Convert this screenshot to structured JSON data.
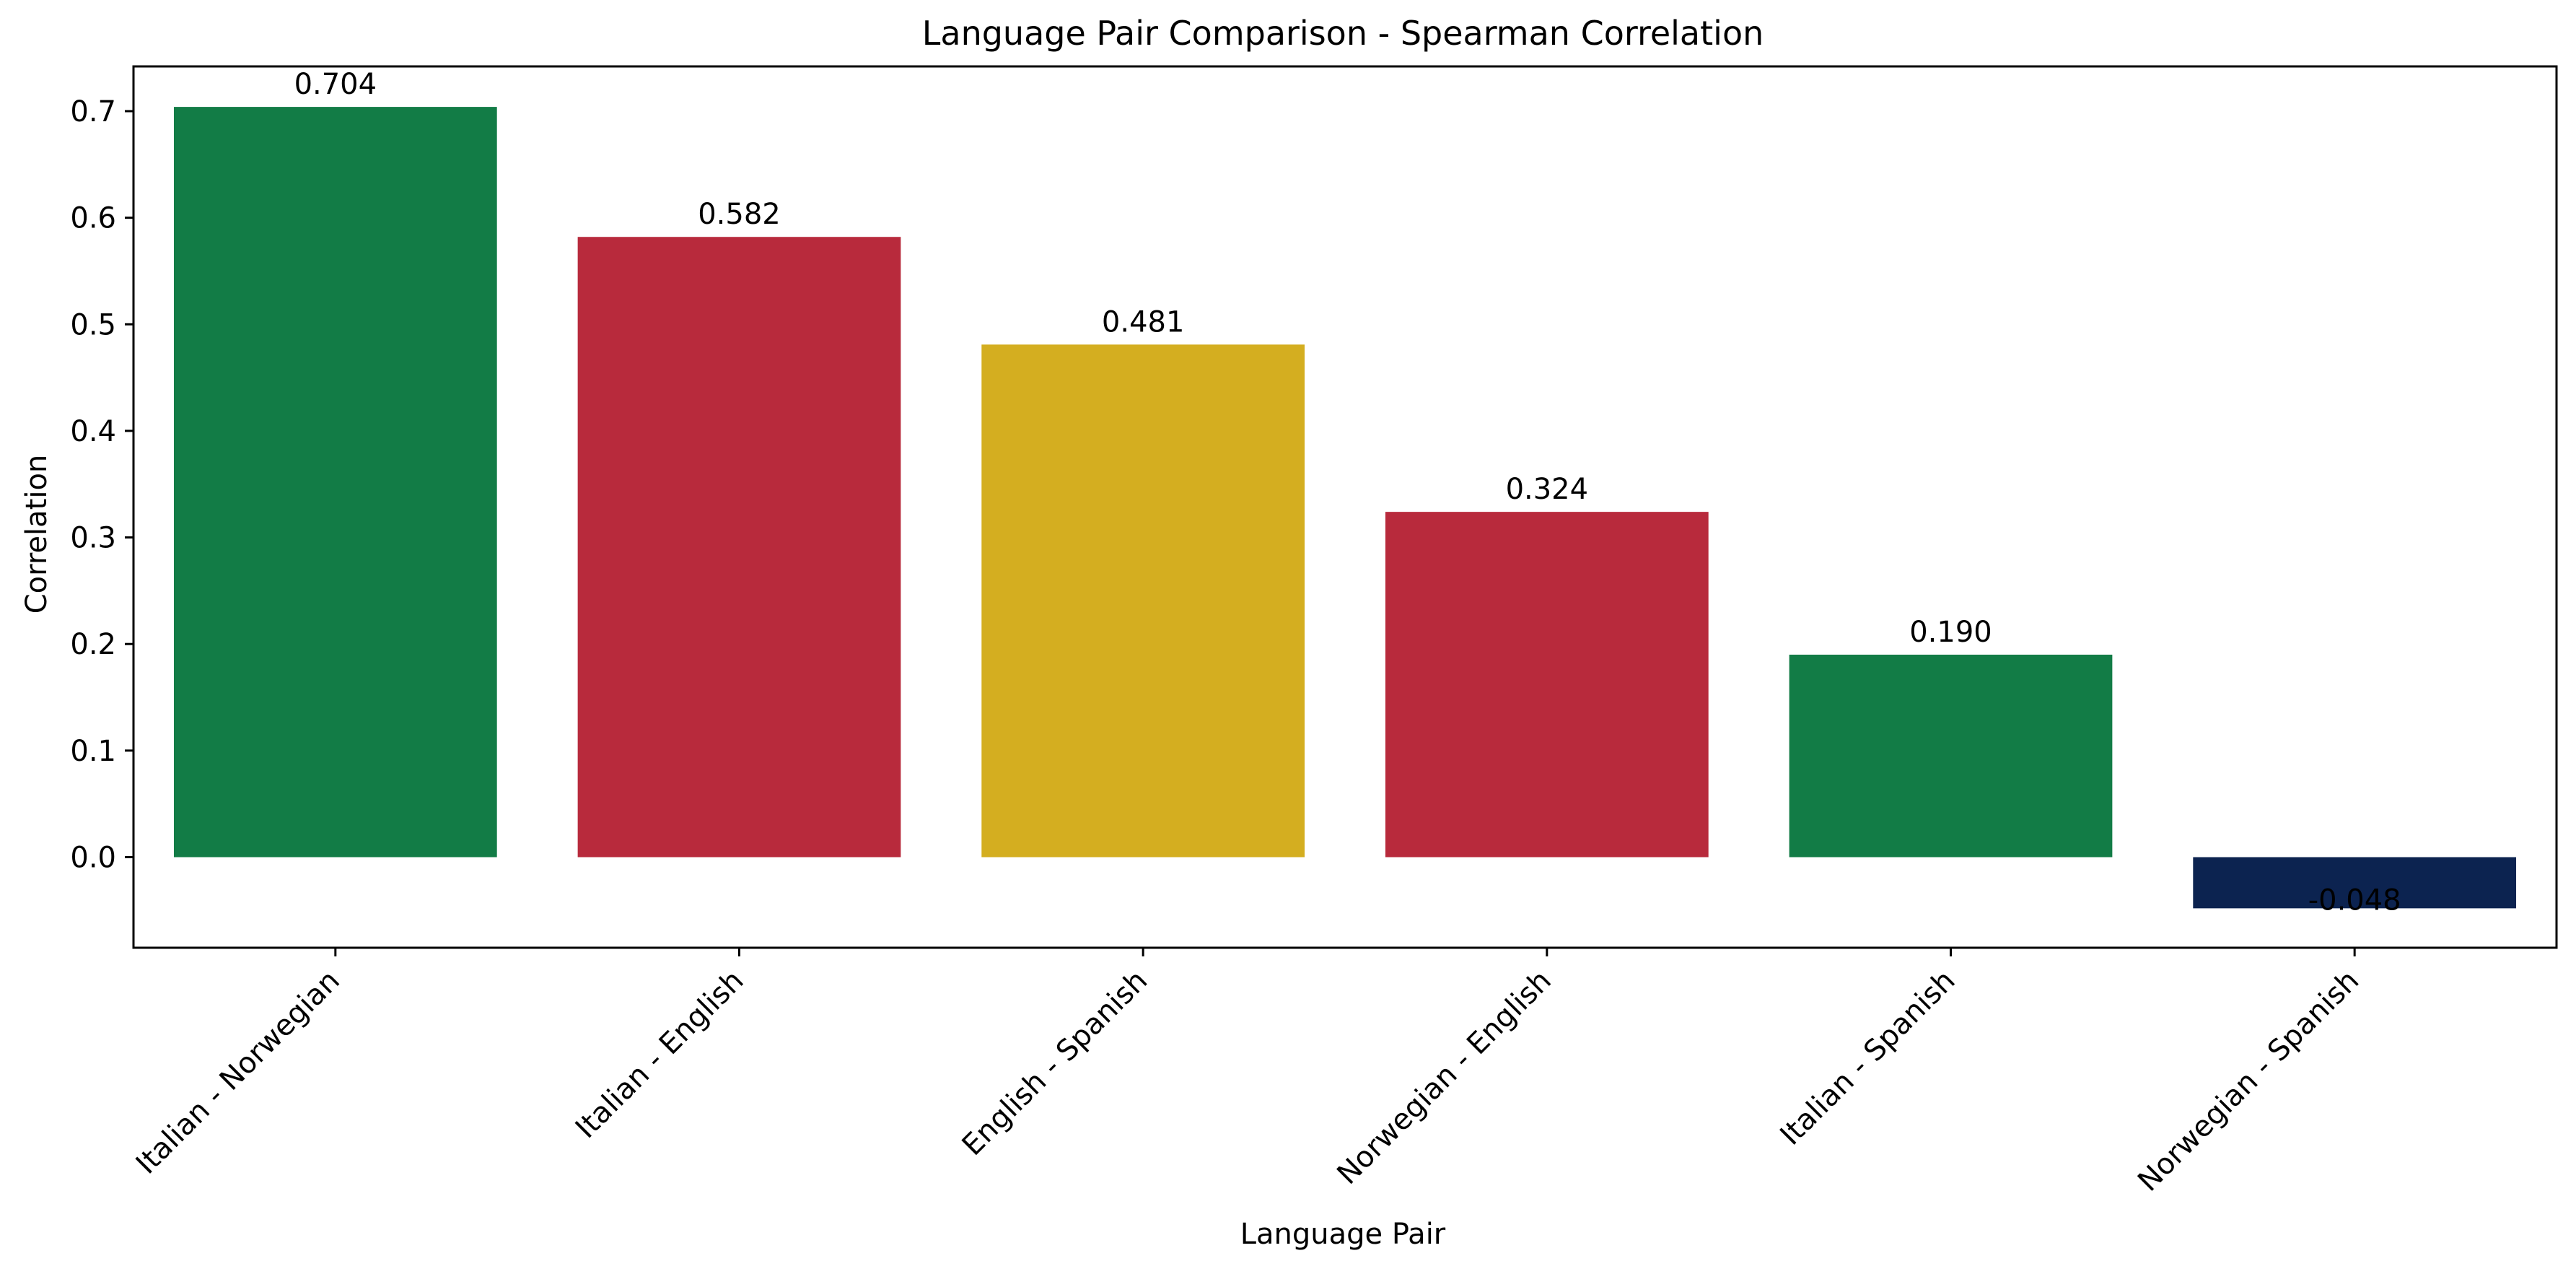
{
  "chart_data": {
    "type": "bar",
    "title": "Language Pair Comparison - Spearman Correlation",
    "xlabel": "Language Pair",
    "ylabel": "Correlation",
    "categories": [
      "Italian - Norwegian",
      "Italian - English",
      "English - Spanish",
      "Norwegian - English",
      "Italian - Spanish",
      "Norwegian - Spanish"
    ],
    "values": [
      0.704,
      0.582,
      0.481,
      0.324,
      0.19,
      -0.048
    ],
    "value_labels": [
      "0.704",
      "0.582",
      "0.481",
      "0.324",
      "0.190",
      "-0.048"
    ],
    "colors": [
      "#127c46",
      "#b82a3c",
      "#d4ae20",
      "#b82a3c",
      "#127c46",
      "#0c2350"
    ],
    "ylim": [
      -0.085,
      0.742
    ],
    "yticks": [
      0.0,
      0.1,
      0.2,
      0.3,
      0.4,
      0.5,
      0.6,
      0.7
    ],
    "ytick_labels": [
      "0.0",
      "0.1",
      "0.2",
      "0.3",
      "0.4",
      "0.5",
      "0.6",
      "0.7"
    ],
    "grid": false,
    "legend": "none"
  }
}
